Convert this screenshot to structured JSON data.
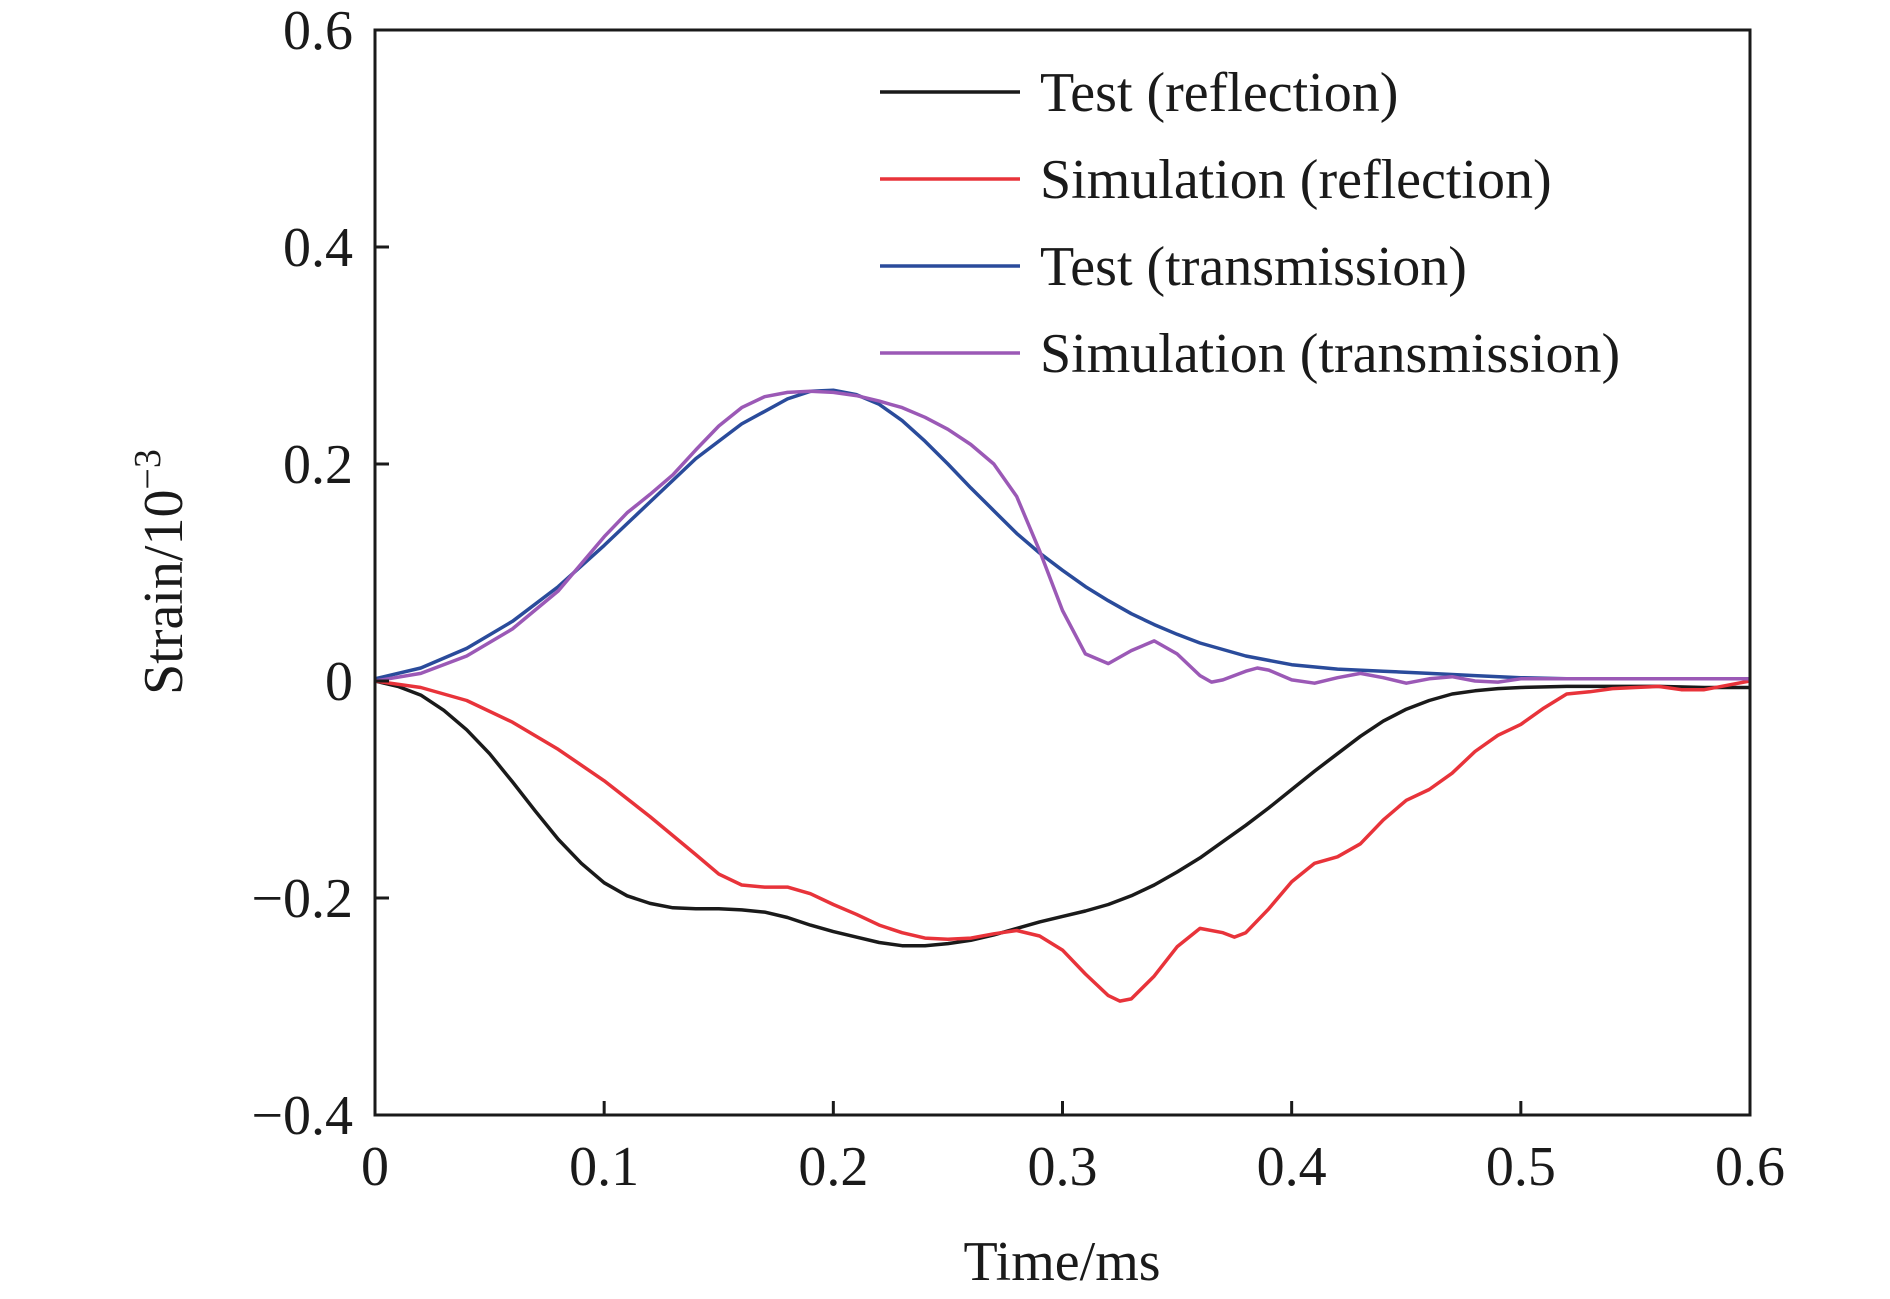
{
  "chart_data": {
    "type": "line",
    "title": "",
    "xlabel": "Time/ms",
    "ylabel": "Strain/10",
    "ylabel_exponent": "−3",
    "xlim": [
      0,
      0.6
    ],
    "ylim": [
      -0.4,
      0.6
    ],
    "xticks": [
      0,
      0.1,
      0.2,
      0.3,
      0.4,
      0.5,
      0.6
    ],
    "xtick_labels": [
      "0",
      "0.1",
      "0.2",
      "0.3",
      "0.4",
      "0.5",
      "0.6"
    ],
    "yticks": [
      -0.4,
      -0.2,
      0,
      0.2,
      0.4,
      0.6
    ],
    "ytick_labels": [
      "−0.4",
      "−0.2",
      "0",
      "0.2",
      "0.4",
      "0.6"
    ],
    "grid": false,
    "legend_position": "top-right",
    "series": [
      {
        "name": "Test (reflection)",
        "color": "#1a1a1a",
        "points": [
          [
            0,
            0
          ],
          [
            0.01,
            -0.005
          ],
          [
            0.02,
            -0.013
          ],
          [
            0.03,
            -0.027
          ],
          [
            0.04,
            -0.045
          ],
          [
            0.05,
            -0.067
          ],
          [
            0.06,
            -0.093
          ],
          [
            0.07,
            -0.12
          ],
          [
            0.08,
            -0.146
          ],
          [
            0.09,
            -0.168
          ],
          [
            0.1,
            -0.186
          ],
          [
            0.11,
            -0.198
          ],
          [
            0.12,
            -0.205
          ],
          [
            0.13,
            -0.209
          ],
          [
            0.14,
            -0.21
          ],
          [
            0.15,
            -0.21
          ],
          [
            0.16,
            -0.211
          ],
          [
            0.17,
            -0.213
          ],
          [
            0.18,
            -0.218
          ],
          [
            0.19,
            -0.225
          ],
          [
            0.2,
            -0.231
          ],
          [
            0.21,
            -0.236
          ],
          [
            0.22,
            -0.241
          ],
          [
            0.23,
            -0.244
          ],
          [
            0.24,
            -0.244
          ],
          [
            0.25,
            -0.242
          ],
          [
            0.26,
            -0.239
          ],
          [
            0.27,
            -0.234
          ],
          [
            0.28,
            -0.228
          ],
          [
            0.29,
            -0.222
          ],
          [
            0.3,
            -0.217
          ],
          [
            0.31,
            -0.212
          ],
          [
            0.32,
            -0.206
          ],
          [
            0.33,
            -0.198
          ],
          [
            0.34,
            -0.188
          ],
          [
            0.35,
            -0.176
          ],
          [
            0.36,
            -0.163
          ],
          [
            0.37,
            -0.148
          ],
          [
            0.38,
            -0.133
          ],
          [
            0.39,
            -0.117
          ],
          [
            0.4,
            -0.1
          ],
          [
            0.41,
            -0.083
          ],
          [
            0.42,
            -0.067
          ],
          [
            0.43,
            -0.051
          ],
          [
            0.44,
            -0.037
          ],
          [
            0.45,
            -0.026
          ],
          [
            0.46,
            -0.018
          ],
          [
            0.47,
            -0.012
          ],
          [
            0.48,
            -0.009
          ],
          [
            0.49,
            -0.007
          ],
          [
            0.5,
            -0.006
          ],
          [
            0.52,
            -0.005
          ],
          [
            0.54,
            -0.005
          ],
          [
            0.56,
            -0.005
          ],
          [
            0.58,
            -0.006
          ],
          [
            0.6,
            -0.006
          ]
        ]
      },
      {
        "name": "Simulation (reflection)",
        "color": "#e8333a",
        "points": [
          [
            0,
            0
          ],
          [
            0.02,
            -0.006
          ],
          [
            0.04,
            -0.018
          ],
          [
            0.06,
            -0.038
          ],
          [
            0.08,
            -0.063
          ],
          [
            0.1,
            -0.092
          ],
          [
            0.12,
            -0.125
          ],
          [
            0.14,
            -0.16
          ],
          [
            0.15,
            -0.178
          ],
          [
            0.16,
            -0.188
          ],
          [
            0.17,
            -0.19
          ],
          [
            0.18,
            -0.19
          ],
          [
            0.19,
            -0.196
          ],
          [
            0.2,
            -0.206
          ],
          [
            0.21,
            -0.215
          ],
          [
            0.22,
            -0.225
          ],
          [
            0.23,
            -0.232
          ],
          [
            0.24,
            -0.237
          ],
          [
            0.25,
            -0.238
          ],
          [
            0.26,
            -0.237
          ],
          [
            0.27,
            -0.233
          ],
          [
            0.28,
            -0.23
          ],
          [
            0.29,
            -0.235
          ],
          [
            0.3,
            -0.248
          ],
          [
            0.31,
            -0.27
          ],
          [
            0.32,
            -0.29
          ],
          [
            0.325,
            -0.295
          ],
          [
            0.33,
            -0.293
          ],
          [
            0.34,
            -0.272
          ],
          [
            0.35,
            -0.245
          ],
          [
            0.36,
            -0.228
          ],
          [
            0.37,
            -0.232
          ],
          [
            0.375,
            -0.236
          ],
          [
            0.38,
            -0.232
          ],
          [
            0.39,
            -0.21
          ],
          [
            0.4,
            -0.185
          ],
          [
            0.41,
            -0.168
          ],
          [
            0.42,
            -0.162
          ],
          [
            0.43,
            -0.15
          ],
          [
            0.44,
            -0.128
          ],
          [
            0.45,
            -0.11
          ],
          [
            0.46,
            -0.1
          ],
          [
            0.47,
            -0.085
          ],
          [
            0.48,
            -0.065
          ],
          [
            0.49,
            -0.05
          ],
          [
            0.5,
            -0.04
          ],
          [
            0.51,
            -0.025
          ],
          [
            0.52,
            -0.012
          ],
          [
            0.53,
            -0.01
          ],
          [
            0.54,
            -0.007
          ],
          [
            0.55,
            -0.006
          ],
          [
            0.56,
            -0.005
          ],
          [
            0.57,
            -0.008
          ],
          [
            0.58,
            -0.008
          ],
          [
            0.59,
            -0.004
          ],
          [
            0.6,
            0
          ]
        ]
      },
      {
        "name": "Test (transmission)",
        "color": "#2a4b9b",
        "points": [
          [
            0,
            0.002
          ],
          [
            0.02,
            0.012
          ],
          [
            0.04,
            0.03
          ],
          [
            0.06,
            0.055
          ],
          [
            0.08,
            0.087
          ],
          [
            0.1,
            0.125
          ],
          [
            0.12,
            0.165
          ],
          [
            0.14,
            0.205
          ],
          [
            0.16,
            0.237
          ],
          [
            0.18,
            0.26
          ],
          [
            0.19,
            0.267
          ],
          [
            0.2,
            0.268
          ],
          [
            0.21,
            0.264
          ],
          [
            0.22,
            0.255
          ],
          [
            0.23,
            0.24
          ],
          [
            0.24,
            0.221
          ],
          [
            0.25,
            0.2
          ],
          [
            0.26,
            0.178
          ],
          [
            0.27,
            0.157
          ],
          [
            0.28,
            0.136
          ],
          [
            0.29,
            0.118
          ],
          [
            0.3,
            0.102
          ],
          [
            0.31,
            0.087
          ],
          [
            0.32,
            0.074
          ],
          [
            0.33,
            0.062
          ],
          [
            0.34,
            0.052
          ],
          [
            0.35,
            0.043
          ],
          [
            0.36,
            0.035
          ],
          [
            0.37,
            0.029
          ],
          [
            0.38,
            0.023
          ],
          [
            0.39,
            0.019
          ],
          [
            0.4,
            0.015
          ],
          [
            0.42,
            0.011
          ],
          [
            0.44,
            0.009
          ],
          [
            0.46,
            0.007
          ],
          [
            0.48,
            0.005
          ],
          [
            0.5,
            0.003
          ],
          [
            0.52,
            0.002
          ],
          [
            0.54,
            0.002
          ],
          [
            0.56,
            0.002
          ],
          [
            0.58,
            0.002
          ],
          [
            0.6,
            0.002
          ]
        ]
      },
      {
        "name": "Simulation (transmission)",
        "color": "#9b59b6",
        "points": [
          [
            0,
            0
          ],
          [
            0.02,
            0.007
          ],
          [
            0.04,
            0.023
          ],
          [
            0.06,
            0.048
          ],
          [
            0.08,
            0.083
          ],
          [
            0.1,
            0.133
          ],
          [
            0.11,
            0.155
          ],
          [
            0.12,
            0.172
          ],
          [
            0.13,
            0.19
          ],
          [
            0.14,
            0.213
          ],
          [
            0.15,
            0.235
          ],
          [
            0.16,
            0.252
          ],
          [
            0.17,
            0.262
          ],
          [
            0.18,
            0.266
          ],
          [
            0.19,
            0.267
          ],
          [
            0.2,
            0.266
          ],
          [
            0.21,
            0.263
          ],
          [
            0.22,
            0.258
          ],
          [
            0.23,
            0.252
          ],
          [
            0.24,
            0.243
          ],
          [
            0.25,
            0.232
          ],
          [
            0.26,
            0.218
          ],
          [
            0.27,
            0.2
          ],
          [
            0.28,
            0.17
          ],
          [
            0.29,
            0.12
          ],
          [
            0.3,
            0.065
          ],
          [
            0.31,
            0.025
          ],
          [
            0.32,
            0.016
          ],
          [
            0.33,
            0.028
          ],
          [
            0.34,
            0.037
          ],
          [
            0.35,
            0.025
          ],
          [
            0.36,
            0.005
          ],
          [
            0.365,
            -0.001
          ],
          [
            0.37,
            0.001
          ],
          [
            0.38,
            0.009
          ],
          [
            0.385,
            0.012
          ],
          [
            0.39,
            0.01
          ],
          [
            0.4,
            0.001
          ],
          [
            0.41,
            -0.002
          ],
          [
            0.42,
            0.003
          ],
          [
            0.43,
            0.007
          ],
          [
            0.44,
            0.003
          ],
          [
            0.45,
            -0.002
          ],
          [
            0.46,
            0.002
          ],
          [
            0.47,
            0.004
          ],
          [
            0.48,
            0
          ],
          [
            0.49,
            -0.001
          ],
          [
            0.5,
            0.002
          ],
          [
            0.52,
            0.002
          ],
          [
            0.54,
            0.002
          ],
          [
            0.56,
            0.002
          ],
          [
            0.58,
            0.002
          ],
          [
            0.6,
            0.002
          ]
        ]
      }
    ]
  }
}
